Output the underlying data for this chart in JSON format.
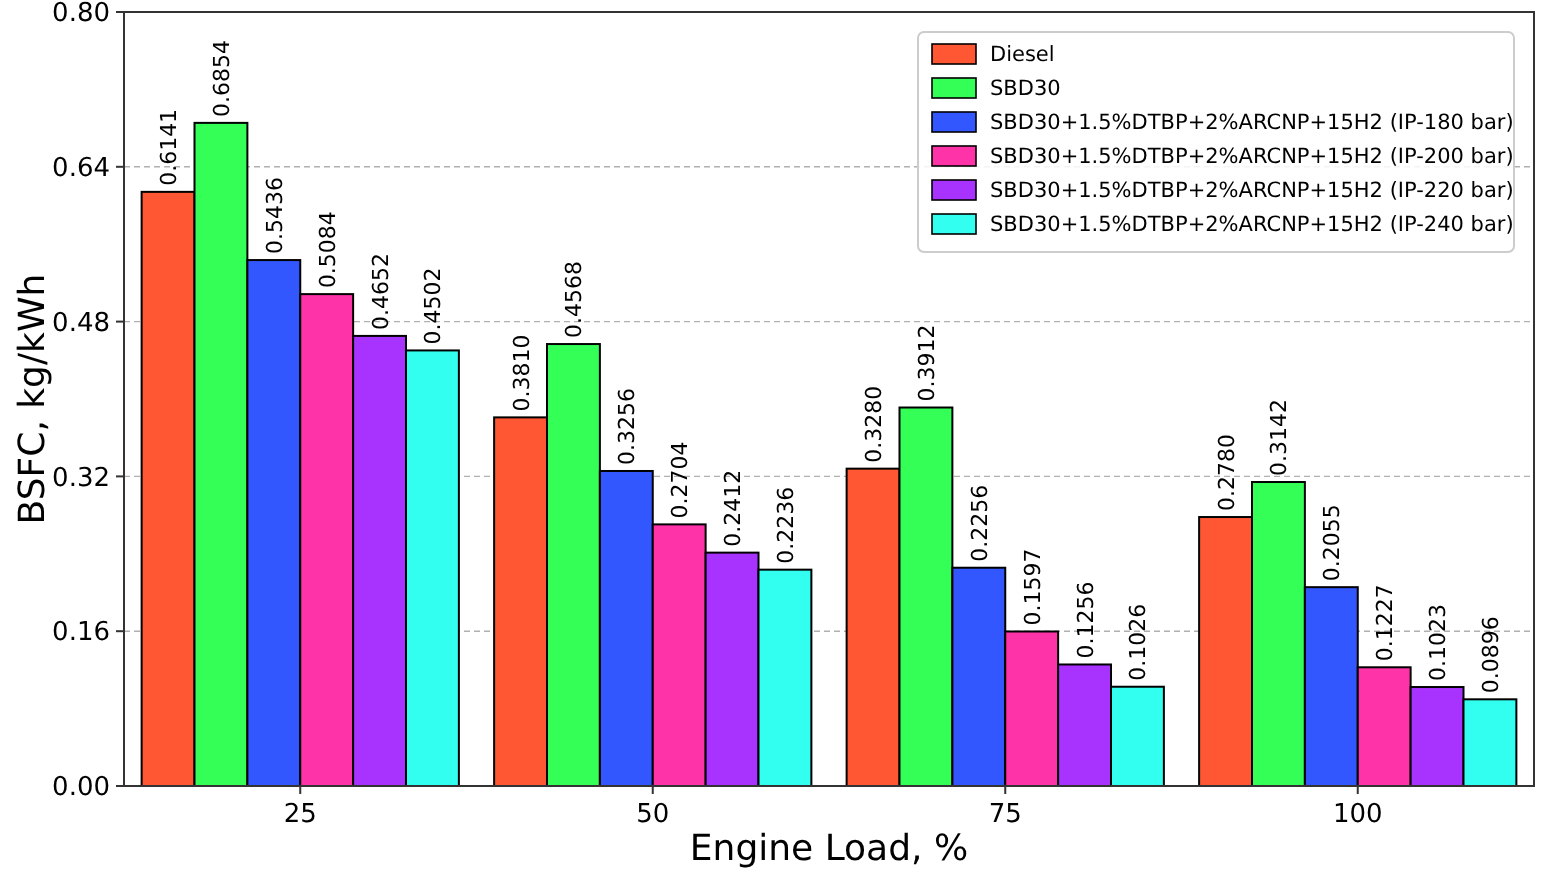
{
  "chart_data": {
    "type": "bar",
    "xlabel": "Engine Load, %",
    "ylabel": "BSFC, kg/kWh",
    "categories": [
      "25",
      "50",
      "75",
      "100"
    ],
    "ylim": [
      0,
      0.8
    ],
    "yticks": [
      {
        "value": 0,
        "label": "0.00"
      },
      {
        "value": 0.16,
        "label": "0.16"
      },
      {
        "value": 0.32,
        "label": "0.32"
      },
      {
        "value": 0.48,
        "label": "0.48"
      },
      {
        "value": 0.64,
        "label": "0.64"
      },
      {
        "value": 0.8,
        "label": "0.80"
      }
    ],
    "grid": "y",
    "legend": "top right",
    "series": [
      {
        "name": "Diesel",
        "color": "#ff5733",
        "values": [
          0.6141,
          0.381,
          0.328,
          0.278
        ],
        "value_labels": [
          "0.6141",
          "0.3810",
          "0.3280",
          "0.2780"
        ]
      },
      {
        "name": "SBD30",
        "color": "#33ff57",
        "values": [
          0.6854,
          0.4568,
          0.3912,
          0.3142
        ],
        "value_labels": [
          "0.6854",
          "0.4568",
          "0.3912",
          "0.3142"
        ]
      },
      {
        "name": "SBD30+1.5%DTBP+2%ARCNP+15H2 (IP-180 bar)",
        "color": "#3357ff",
        "values": [
          0.5436,
          0.3256,
          0.2256,
          0.2055
        ],
        "value_labels": [
          "0.5436",
          "0.3256",
          "0.2256",
          "0.2055"
        ]
      },
      {
        "name": "SBD30+1.5%DTBP+2%ARCNP+15H2 (IP-200 bar)",
        "color": "#ff33a8",
        "values": [
          0.5084,
          0.2704,
          0.1597,
          0.1227
        ],
        "value_labels": [
          "0.5084",
          "0.2704",
          "0.1597",
          "0.1227"
        ]
      },
      {
        "name": "SBD30+1.5%DTBP+2%ARCNP+15H2 (IP-220 bar)",
        "color": "#a833ff",
        "values": [
          0.4652,
          0.2412,
          0.1256,
          0.1023
        ],
        "value_labels": [
          "0.4652",
          "0.2412",
          "0.1256",
          "0.1023"
        ]
      },
      {
        "name": "SBD30+1.5%DTBP+2%ARCNP+15H2 (IP-240 bar)",
        "color": "#33fff0",
        "values": [
          0.4502,
          0.2236,
          0.1026,
          0.0896
        ],
        "value_labels": [
          "0.4502",
          "0.2236",
          "0.1026",
          "0.0896"
        ]
      }
    ]
  }
}
